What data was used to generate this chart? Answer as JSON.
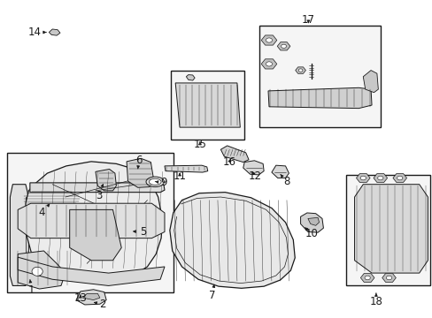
{
  "bg_color": "#ffffff",
  "line_color": "#1a1a1a",
  "fig_width": 4.89,
  "fig_height": 3.6,
  "dpi": 100,
  "font_size": 8.5,
  "boxes": {
    "13": [
      0.015,
      0.08,
      0.4,
      0.52
    ],
    "15": [
      0.395,
      0.56,
      0.565,
      0.78
    ],
    "17": [
      0.6,
      0.6,
      0.88,
      0.92
    ],
    "18": [
      0.8,
      0.1,
      0.995,
      0.45
    ]
  },
  "labels": {
    "1": [
      0.072,
      0.085,
      0.068,
      0.12
    ],
    "2": [
      0.237,
      0.04,
      0.21,
      0.05
    ],
    "3": [
      0.228,
      0.385,
      0.24,
      0.43
    ],
    "4": [
      0.095,
      0.33,
      0.118,
      0.365
    ],
    "5": [
      0.33,
      0.27,
      0.3,
      0.272
    ],
    "6": [
      0.32,
      0.495,
      0.318,
      0.468
    ],
    "7": [
      0.49,
      0.07,
      0.495,
      0.105
    ],
    "8": [
      0.662,
      0.43,
      0.648,
      0.452
    ],
    "9": [
      0.377,
      0.425,
      0.352,
      0.43
    ],
    "10": [
      0.72,
      0.265,
      0.7,
      0.29
    ],
    "11": [
      0.415,
      0.445,
      0.415,
      0.465
    ],
    "12": [
      0.59,
      0.445,
      0.58,
      0.468
    ],
    "13": [
      0.185,
      0.062,
      0.185,
      0.08
    ],
    "14": [
      0.078,
      0.9,
      0.112,
      0.9
    ],
    "15": [
      0.462,
      0.545,
      0.462,
      0.563
    ],
    "16": [
      0.53,
      0.49,
      0.535,
      0.508
    ],
    "17": [
      0.713,
      0.94,
      0.713,
      0.92
    ],
    "18": [
      0.87,
      0.05,
      0.87,
      0.077
    ]
  }
}
